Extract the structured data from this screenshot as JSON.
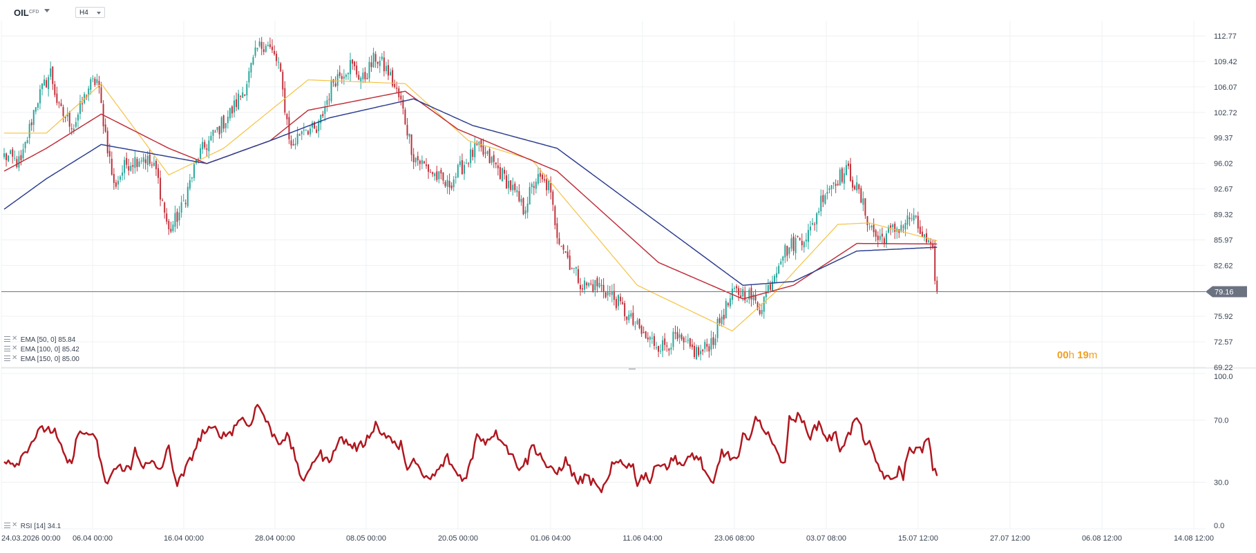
{
  "header": {
    "symbol": "OIL",
    "instrument_type": "CFD",
    "timeframe": "H4"
  },
  "colors": {
    "up_candle": "#26a69a",
    "down_candle": "#c0303a",
    "ema50": "#f5c242",
    "ema100": "#c0303a",
    "ema150": "#2e3f8f",
    "rsi_line": "#b0171f",
    "price_line": "#6b7280",
    "price_tag_bg": "#6b7280",
    "countdown": "#f0a020",
    "grid": "#eef0f3"
  },
  "legend": [
    {
      "label": "EMA [50, 0]",
      "value": "85.84"
    },
    {
      "label": "EMA [100, 0]",
      "value": "85.42"
    },
    {
      "label": "EMA [150, 0]",
      "value": "85.00"
    }
  ],
  "rsi_legend": {
    "label": "RSI [14]",
    "value": "34.1"
  },
  "countdown": {
    "hours": "00",
    "h_unit": "h",
    "minutes": "19",
    "m_unit": "m"
  },
  "current_price": "79.16",
  "chart_data": [
    {
      "type": "candlestick",
      "title": "OIL CFD H4",
      "x_ticks": [
        "24.03.2026 00:00",
        "06.04 00:00",
        "16.04 00:00",
        "28.04 00:00",
        "08.05 00:00",
        "20.05 00:00",
        "01.06 04:00",
        "11.06 04:00",
        "23.06 08:00",
        "03.07 08:00",
        "15.07 12:00",
        "27.07 12:00",
        "06.08 12:00",
        "14.08 12:00"
      ],
      "y_ticks": [
        112.77,
        109.42,
        106.07,
        102.72,
        99.37,
        96.02,
        92.67,
        89.32,
        85.97,
        82.62,
        75.92,
        72.57,
        69.22
      ],
      "ylim": [
        69.22,
        114.5
      ],
      "last_price": 79.16,
      "close_anchors": [
        [
          0,
          97
        ],
        [
          8,
          96
        ],
        [
          15,
          104
        ],
        [
          22,
          108
        ],
        [
          26,
          103
        ],
        [
          33,
          101
        ],
        [
          40,
          106
        ],
        [
          44,
          107
        ],
        [
          52,
          93
        ],
        [
          58,
          96
        ],
        [
          66,
          97
        ],
        [
          72,
          95
        ],
        [
          78,
          87
        ],
        [
          84,
          90
        ],
        [
          92,
          97
        ],
        [
          100,
          100
        ],
        [
          108,
          103
        ],
        [
          114,
          106
        ],
        [
          120,
          111
        ],
        [
          124,
          112
        ],
        [
          130,
          109
        ],
        [
          136,
          98
        ],
        [
          142,
          101
        ],
        [
          148,
          100
        ],
        [
          156,
          107
        ],
        [
          164,
          109
        ],
        [
          170,
          107
        ],
        [
          176,
          110
        ],
        [
          182,
          108
        ],
        [
          188,
          104
        ],
        [
          194,
          97
        ],
        [
          202,
          95
        ],
        [
          210,
          93
        ],
        [
          218,
          96
        ],
        [
          224,
          98
        ],
        [
          232,
          96
        ],
        [
          240,
          93
        ],
        [
          246,
          90
        ],
        [
          252,
          94
        ],
        [
          258,
          93
        ],
        [
          262,
          87
        ],
        [
          268,
          83
        ],
        [
          274,
          80
        ],
        [
          282,
          80
        ],
        [
          290,
          78
        ],
        [
          298,
          75
        ],
        [
          304,
          73
        ],
        [
          312,
          72
        ],
        [
          318,
          73
        ],
        [
          322,
          72
        ],
        [
          330,
          71
        ],
        [
          336,
          73
        ],
        [
          340,
          76
        ],
        [
          346,
          79
        ],
        [
          352,
          79
        ],
        [
          358,
          77
        ],
        [
          364,
          81
        ],
        [
          368,
          84
        ],
        [
          376,
          86
        ],
        [
          382,
          87
        ],
        [
          388,
          92
        ],
        [
          394,
          94
        ],
        [
          400,
          95
        ],
        [
          405,
          92
        ],
        [
          410,
          88
        ],
        [
          414,
          86
        ],
        [
          420,
          87
        ],
        [
          426,
          88
        ],
        [
          430,
          89
        ],
        [
          436,
          86
        ],
        [
          440,
          84
        ],
        [
          442,
          78.8
        ]
      ],
      "series": [
        {
          "name": "EMA [50, 0]",
          "last": 85.84,
          "anchors": [
            [
              0,
              100
            ],
            [
              20,
              100
            ],
            [
              46,
              106.5
            ],
            [
              78,
              94.5
            ],
            [
              104,
              98
            ],
            [
              144,
              107
            ],
            [
              190,
              106.5
            ],
            [
              220,
              99
            ],
            [
              250,
              96.5
            ],
            [
              300,
              80
            ],
            [
              345,
              74
            ],
            [
              365,
              79
            ],
            [
              395,
              88
            ],
            [
              410,
              88.2
            ],
            [
              442,
              85.84
            ]
          ]
        },
        {
          "name": "EMA [100, 0]",
          "last": 85.42,
          "anchors": [
            [
              0,
              95
            ],
            [
              20,
              98
            ],
            [
              46,
              102.5
            ],
            [
              78,
              98
            ],
            [
              96,
              96
            ],
            [
              126,
              99
            ],
            [
              144,
              103
            ],
            [
              190,
              105.5
            ],
            [
              215,
              100.5
            ],
            [
              262,
              95
            ],
            [
              310,
              83
            ],
            [
              350,
              78.2
            ],
            [
              374,
              80
            ],
            [
              404,
              85.5
            ],
            [
              442,
              85.42
            ]
          ]
        },
        {
          "name": "EMA [150, 0]",
          "last": 85.0,
          "anchors": [
            [
              0,
              90
            ],
            [
              20,
              94
            ],
            [
              46,
              98.5
            ],
            [
              96,
              96
            ],
            [
              126,
              99
            ],
            [
              154,
              102
            ],
            [
              194,
              104.5
            ],
            [
              222,
              101
            ],
            [
              262,
              98
            ],
            [
              350,
              80
            ],
            [
              374,
              80.5
            ],
            [
              404,
              84.5
            ],
            [
              442,
              85.0
            ]
          ]
        }
      ]
    },
    {
      "type": "line",
      "title": "RSI [14]",
      "y_ticks": [
        100.0,
        70.0,
        30.0,
        0.0
      ],
      "ylim": [
        0,
        100
      ],
      "series": [
        {
          "name": "RSI [14]",
          "last": 34.1,
          "anchors": [
            [
              0,
              45
            ],
            [
              6,
              42
            ],
            [
              10,
              50
            ],
            [
              16,
              62
            ],
            [
              20,
              65
            ],
            [
              24,
              62
            ],
            [
              28,
              48
            ],
            [
              32,
              40
            ],
            [
              34,
              60
            ],
            [
              40,
              62
            ],
            [
              44,
              55
            ],
            [
              48,
              28
            ],
            [
              52,
              38
            ],
            [
              56,
              40
            ],
            [
              60,
              38
            ],
            [
              62,
              52
            ],
            [
              66,
              40
            ],
            [
              70,
              42
            ],
            [
              74,
              38
            ],
            [
              78,
              52
            ],
            [
              82,
              28
            ],
            [
              86,
              38
            ],
            [
              90,
              50
            ],
            [
              94,
              62
            ],
            [
              100,
              64
            ],
            [
              104,
              60
            ],
            [
              108,
              63
            ],
            [
              112,
              72
            ],
            [
              116,
              66
            ],
            [
              120,
              80
            ],
            [
              122,
              76
            ],
            [
              126,
              64
            ],
            [
              130,
              56
            ],
            [
              134,
              60
            ],
            [
              138,
              46
            ],
            [
              142,
              28
            ],
            [
              146,
              44
            ],
            [
              150,
              48
            ],
            [
              154,
              42
            ],
            [
              156,
              52
            ],
            [
              160,
              58
            ],
            [
              164,
              54
            ],
            [
              168,
              52
            ],
            [
              172,
              58
            ],
            [
              176,
              68
            ],
            [
              178,
              62
            ],
            [
              182,
              60
            ],
            [
              186,
              52
            ],
            [
              188,
              55
            ],
            [
              190,
              40
            ],
            [
              194,
              44
            ],
            [
              198,
              34
            ],
            [
              202,
              32
            ],
            [
              206,
              38
            ],
            [
              210,
              46
            ],
            [
              214,
              36
            ],
            [
              218,
              32
            ],
            [
              222,
              46
            ],
            [
              224,
              62
            ],
            [
              228,
              56
            ],
            [
              232,
              62
            ],
            [
              236,
              58
            ],
            [
              240,
              48
            ],
            [
              244,
              40
            ],
            [
              248,
              44
            ],
            [
              250,
              54
            ],
            [
              254,
              48
            ],
            [
              258,
              38
            ],
            [
              262,
              36
            ],
            [
              266,
              44
            ],
            [
              270,
              34
            ],
            [
              272,
              30
            ],
            [
              276,
              34
            ],
            [
              280,
              28
            ],
            [
              282,
              24
            ],
            [
              286,
              30
            ],
            [
              288,
              40
            ],
            [
              292,
              44
            ],
            [
              294,
              42
            ],
            [
              298,
              40
            ],
            [
              300,
              30
            ],
            [
              304,
              36
            ],
            [
              306,
              30
            ],
            [
              310,
              44
            ],
            [
              314,
              40
            ],
            [
              318,
              46
            ],
            [
              322,
              40
            ],
            [
              326,
              48
            ],
            [
              330,
              44
            ],
            [
              334,
              30
            ],
            [
              336,
              28
            ],
            [
              340,
              50
            ],
            [
              344,
              46
            ],
            [
              348,
              44
            ],
            [
              350,
              60
            ],
            [
              352,
              56
            ],
            [
              356,
              72
            ],
            [
              360,
              62
            ],
            [
              362,
              64
            ],
            [
              366,
              48
            ],
            [
              370,
              44
            ],
            [
              372,
              70
            ],
            [
              376,
              72
            ],
            [
              380,
              66
            ],
            [
              382,
              60
            ],
            [
              386,
              68
            ],
            [
              390,
              58
            ],
            [
              394,
              60
            ],
            [
              396,
              52
            ],
            [
              400,
              60
            ],
            [
              404,
              72
            ],
            [
              408,
              56
            ],
            [
              410,
              54
            ],
            [
              412,
              46
            ],
            [
              416,
              36
            ],
            [
              420,
              30
            ],
            [
              424,
              38
            ],
            [
              426,
              34
            ],
            [
              428,
              48
            ],
            [
              430,
              52
            ],
            [
              434,
              50
            ],
            [
              438,
              58
            ],
            [
              440,
              38
            ],
            [
              442,
              34.1
            ]
          ]
        }
      ]
    }
  ]
}
